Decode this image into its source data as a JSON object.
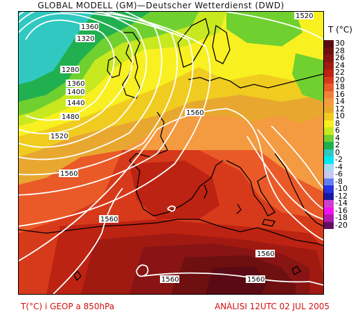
{
  "header": {
    "title": "GLOBAL MODELL (GM)—Deutscher Wetterdienst (DWD)"
  },
  "legend": {
    "title": "T (°C)",
    "items": [
      {
        "label": "30",
        "color": "#5a0a14"
      },
      {
        "label": "28",
        "color": "#6e1010"
      },
      {
        "label": "26",
        "color": "#881414"
      },
      {
        "label": "24",
        "color": "#a01a12"
      },
      {
        "label": "22",
        "color": "#bd2312"
      },
      {
        "label": "20",
        "color": "#d63a1a"
      },
      {
        "label": "18",
        "color": "#ea5a28"
      },
      {
        "label": "16",
        "color": "#f28038"
      },
      {
        "label": "14",
        "color": "#f49a40"
      },
      {
        "label": "12",
        "color": "#e8a830"
      },
      {
        "label": "10",
        "color": "#f0cc20"
      },
      {
        "label": "8",
        "color": "#f8f020"
      },
      {
        "label": "6",
        "color": "#c8e820"
      },
      {
        "label": "4",
        "color": "#70d030"
      },
      {
        "label": "2",
        "color": "#20b050"
      },
      {
        "label": "0",
        "color": "#30c8c0"
      },
      {
        "label": "-2",
        "color": "#00e8f0"
      },
      {
        "label": "-4",
        "color": "#a8d8f0"
      },
      {
        "label": "-6",
        "color": "#c8c8f0"
      },
      {
        "label": "-8",
        "color": "#6080f0"
      },
      {
        "label": "-10",
        "color": "#2830e0"
      },
      {
        "label": "-12",
        "color": "#1818a0"
      },
      {
        "label": "-14",
        "color": "#d040d0"
      },
      {
        "label": "-16",
        "color": "#f010f0"
      },
      {
        "label": "-18",
        "color": "#b018b0"
      },
      {
        "label": "-20",
        "color": "#601060"
      }
    ]
  },
  "contour_labels": {
    "l1": "1520",
    "l2": "1360",
    "l3": "1320",
    "l4": "1280",
    "l5": "1360",
    "l6": "1400",
    "l7": "1440",
    "l8": "1480",
    "l9": "1520",
    "l10": "1560",
    "l11": "1560",
    "l12": "1560",
    "l13": "1560",
    "l14": "1560",
    "l15": "1560"
  },
  "footer": {
    "left": "T(°C) i GEOP a 850hPa",
    "right": "ANÀLISI 12UTC 02 JUL 2005"
  }
}
